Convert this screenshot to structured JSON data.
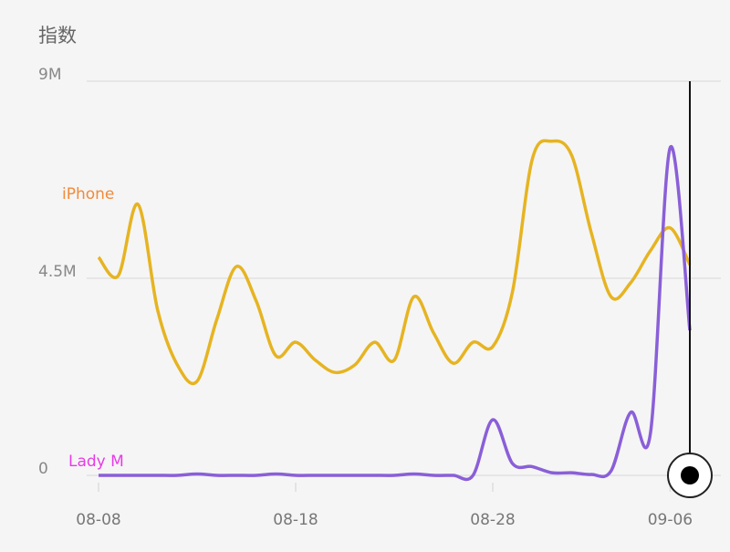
{
  "chart_data": {
    "type": "line",
    "title": "指数",
    "categories": [
      "08-08",
      null,
      null,
      null,
      null,
      null,
      null,
      null,
      null,
      null,
      "08-18",
      null,
      null,
      null,
      null,
      null,
      null,
      null,
      null,
      null,
      "08-28",
      null,
      null,
      null,
      null,
      null,
      null,
      null,
      null,
      "09-06",
      null
    ],
    "series": [
      {
        "name": "iPhone",
        "color": "#e6b422",
        "label_color": "#f08a3a",
        "values": [
          4.98,
          4.56,
          6.19,
          3.77,
          2.52,
          2.15,
          3.56,
          4.77,
          3.98,
          2.73,
          3.04,
          2.63,
          2.35,
          2.52,
          3.04,
          2.63,
          4.08,
          3.25,
          2.56,
          3.04,
          2.94,
          4.19,
          7.21,
          7.63,
          7.31,
          5.54,
          4.08,
          4.4,
          5.13,
          5.65,
          4.81
        ]
      },
      {
        "name": "Lady M",
        "color": "#8a5fd8",
        "label_color": "#e63ce6",
        "values": [
          0,
          0,
          0,
          0,
          0,
          0.03,
          0,
          0,
          0,
          0.03,
          0,
          0,
          0,
          0,
          0,
          0,
          0.03,
          0,
          0,
          0,
          1.27,
          0.27,
          0.2,
          0.06,
          0.06,
          0.02,
          0.1,
          1.44,
          0.96,
          7.48,
          3.31
        ]
      }
    ],
    "ylim": [
      0,
      9
    ],
    "yticks": [
      {
        "value": 0,
        "label": "0"
      },
      {
        "value": 4.5,
        "label": "4.5M"
      },
      {
        "value": 9,
        "label": "9M"
      }
    ],
    "grid": true
  }
}
